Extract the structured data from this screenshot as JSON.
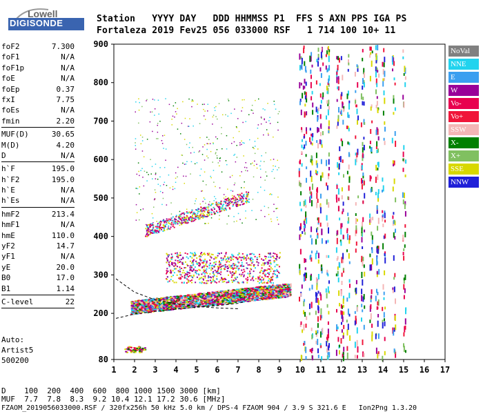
{
  "logo": {
    "line1": "Lowell",
    "line2": "DIGISONDE"
  },
  "header": {
    "labels_line": "Station   YYYY DAY   DDD HHMMSS P1  FFS S AXN PPS IGA PS",
    "values_line": "Fortaleza 2019 Fev25 056 033000 RSF   1 714 100 10+ 11"
  },
  "params": [
    {
      "group": [
        {
          "name": "foF2",
          "value": "7.300"
        },
        {
          "name": "foF1",
          "value": "N/A"
        },
        {
          "name": "foF1p",
          "value": "N/A"
        },
        {
          "name": "foE",
          "value": "N/A"
        },
        {
          "name": "foEp",
          "value": "0.37"
        },
        {
          "name": "fxI",
          "value": "7.75"
        },
        {
          "name": "foEs",
          "value": "N/A"
        },
        {
          "name": "fmin",
          "value": "2.20"
        }
      ]
    },
    {
      "group": [
        {
          "name": "MUF(D)",
          "value": "30.65"
        },
        {
          "name": "M(D)",
          "value": "4.20"
        },
        {
          "name": "D",
          "value": "N/A"
        }
      ]
    },
    {
      "group": [
        {
          "name": "h`F",
          "value": "195.0"
        },
        {
          "name": "h`F2",
          "value": "195.0"
        },
        {
          "name": "h`E",
          "value": "N/A"
        },
        {
          "name": "h`Es",
          "value": "N/A"
        }
      ]
    },
    {
      "group": [
        {
          "name": "hmF2",
          "value": "213.4"
        },
        {
          "name": "hmF1",
          "value": "N/A"
        },
        {
          "name": "hmE",
          "value": "110.0"
        },
        {
          "name": "yF2",
          "value": "14.7"
        },
        {
          "name": "yF1",
          "value": "N/A"
        },
        {
          "name": "yE",
          "value": "20.0"
        },
        {
          "name": "B0",
          "value": "17.0"
        },
        {
          "name": "B1",
          "value": "1.14"
        }
      ]
    },
    {
      "group": [
        {
          "name": "C-level",
          "value": "22"
        }
      ]
    }
  ],
  "auto": {
    "line1": "Auto:",
    "line2": "Artist5",
    "line3": "500200"
  },
  "legend": [
    {
      "label": "NoVal",
      "color": "#808080"
    },
    {
      "label": "NNE",
      "color": "#22d3ee"
    },
    {
      "label": "E",
      "color": "#3b9ff0"
    },
    {
      "label": "W",
      "color": "#990099"
    },
    {
      "label": "Vo-",
      "color": "#e8004f"
    },
    {
      "label": "Vo+",
      "color": "#f0163a"
    },
    {
      "label": "SSW",
      "color": "#f4b6b6"
    },
    {
      "label": "X-",
      "color": "#008000"
    },
    {
      "label": "X+",
      "color": "#80c060"
    },
    {
      "label": "SSE",
      "color": "#d8d800"
    },
    {
      "label": "NNW",
      "color": "#2020d8"
    }
  ],
  "footer": {
    "d_line": "D    100  200  400  600  800 1000 1500 3000 [km]",
    "muf_line": "MUF  7.7  7.8  8.3  9.2 10.4 12.1 17.2 30.6 [MHz]",
    "file_line": "FZAOM_2019056033000.RSF / 320fx256h 50 kHz 5.0 km / DPS-4 FZAOM 904 / 3.9 S 321.6 E   Ion2Png 1.3.20"
  },
  "chart_data": {
    "type": "scatter",
    "xlim": [
      1,
      17
    ],
    "ylim": [
      80,
      900
    ],
    "xticks": [
      "1",
      "2",
      "3",
      "4",
      "5",
      "6",
      "7",
      "8",
      "9",
      "10",
      "11",
      "12",
      "13",
      "14",
      "15",
      "16",
      "17"
    ],
    "yticks": [
      "80",
      "200",
      "300",
      "400",
      "500",
      "600",
      "700",
      "800",
      "900"
    ],
    "grid": false,
    "legend_position": "right",
    "traces": [
      {
        "name": "trace-o",
        "style": "dashed",
        "x": [
          1.1,
          2.0,
          3.0,
          4.0,
          5.0,
          6.0,
          7.0
        ],
        "y": [
          290,
          255,
          235,
          225,
          218,
          214,
          212
        ]
      },
      {
        "name": "trace-x",
        "style": "dashed",
        "x": [
          1.1,
          2.0,
          3.0,
          4.0,
          5.0,
          6.0,
          7.0,
          7.3
        ],
        "y": [
          187,
          198,
          205,
          211,
          216,
          220,
          226,
          230
        ]
      }
    ],
    "echo_regions": [
      {
        "name": "F-layer trace",
        "xrange": [
          1.8,
          9.5
        ],
        "yrange": [
          195,
          280
        ]
      },
      {
        "name": "F-layer multiple",
        "xrange": [
          2.5,
          7.5
        ],
        "yrange": [
          390,
          500
        ]
      },
      {
        "name": "F-layer spread",
        "xrange": [
          3.5,
          9.0
        ],
        "yrange": [
          280,
          360
        ]
      },
      {
        "name": "faint scatter",
        "xrange": [
          2.0,
          9.0
        ],
        "yrange": [
          430,
          760
        ]
      },
      {
        "name": "E-region echoes",
        "xrange": [
          1.5,
          2.5
        ],
        "yrange": [
          100,
          115
        ]
      },
      {
        "name": "interference bands",
        "xrange": [
          9.9,
          15.0
        ],
        "yrange": [
          80,
          900
        ]
      }
    ]
  }
}
